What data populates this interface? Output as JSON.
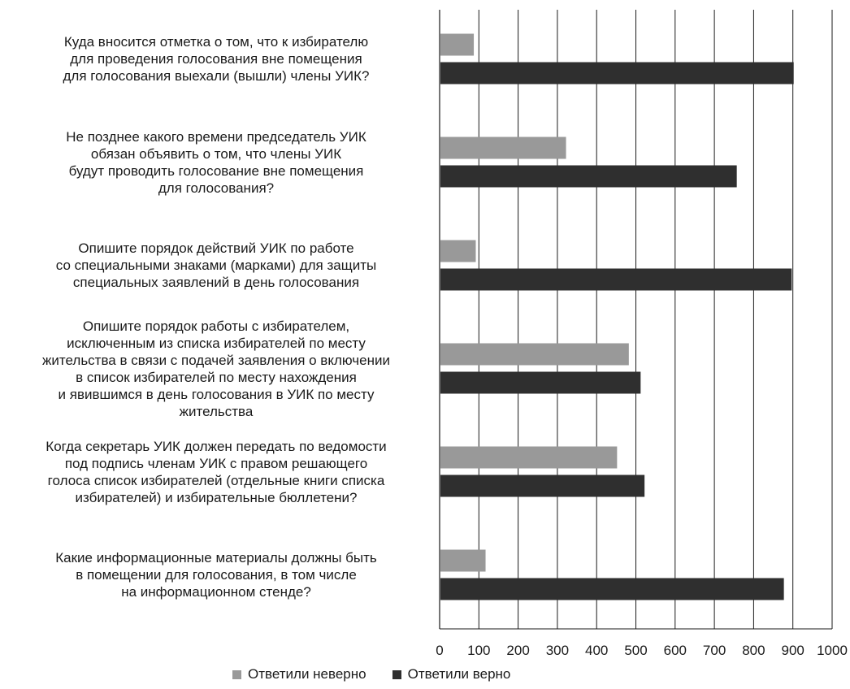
{
  "chart_data": {
    "type": "bar",
    "orientation": "horizontal",
    "categories": [
      "Куда вносится отметка о том, что к избирателю\nдля проведения голосования вне помещения\nдля голосования выехали (вышли) члены УИК?",
      "Не позднее какого времени председатель УИК\nобязан объявить о том, что члены УИК\nбудут проводить голосование вне помещения\nдля голосования?",
      "Опишите порядок действий УИК по работе\nсо специальными знаками (марками) для защиты\nспециальных заявлений в день голосования",
      "Опишите порядок работы с избирателем,\nисключенным из списка избирателей по месту\nжительства в связи с подачей заявления о включении\nв список избирателей по месту нахождения\nи явившимся в день голосования в УИК по месту\nжительства",
      "Когда секретарь УИК должен передать по ведомости\nпод подпись членам УИК с правом решающего\nголоса список избирателей (отдельные книги списка\nизбирателей) и избирательные бюллетени?",
      "Какие информационные материалы должны быть\nв помещении для голосования, в том числе\nна информационном стенде?"
    ],
    "series": [
      {
        "name": "Ответили неверно",
        "color": "#999999",
        "values": [
          85,
          320,
          90,
          480,
          450,
          115
        ]
      },
      {
        "name": "Ответили верно",
        "color": "#2f2f2f",
        "values": [
          900,
          755,
          895,
          510,
          520,
          875
        ]
      }
    ],
    "xlim": [
      0,
      1000
    ],
    "xticks": [
      "0",
      "100",
      "200",
      "300",
      "400",
      "500",
      "600",
      "700",
      "800",
      "900",
      "1000"
    ],
    "grid": true,
    "legend": "bottom"
  }
}
